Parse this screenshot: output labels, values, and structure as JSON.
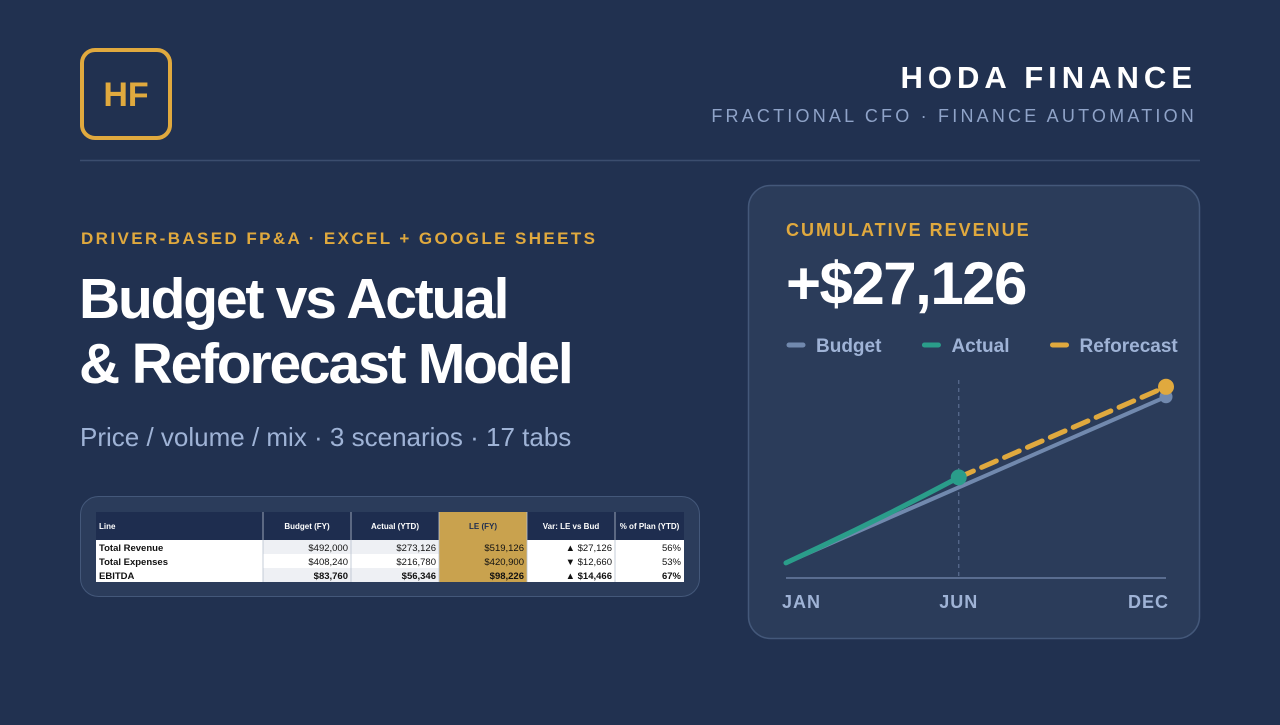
{
  "brand": {
    "logo": "HF",
    "name": "HODA FINANCE",
    "tagline": "FRACTIONAL CFO · FINANCE AUTOMATION"
  },
  "hero": {
    "eyebrow": "DRIVER-BASED FP&A · EXCEL + GOOGLE SHEETS",
    "title_lines": [
      "Budget vs Actual",
      "& Reforecast Model"
    ],
    "subtitle": "Price / volume / mix · 3 scenarios · 17 tabs"
  },
  "table": {
    "columns": [
      "Line",
      "Budget (FY)",
      "Actual (YTD)",
      "LE (FY)",
      "Var: LE vs Bud",
      "% of Plan (YTD)"
    ],
    "rows": [
      [
        "Total Revenue",
        "$492,000",
        "$273,126",
        "$519,126",
        "▲ $27,126",
        "56%"
      ],
      [
        "Total Expenses",
        "$408,240",
        "$216,780",
        "$420,900",
        "▼ $12,660",
        "53%"
      ],
      [
        "EBITDA",
        "$83,760",
        "$56,346",
        "$98,226",
        "▲ $14,466",
        "67%"
      ]
    ]
  },
  "chart_data": {
    "type": "line",
    "title": "CUMULATIVE REVENUE",
    "headline": "+$27,126",
    "categories": [
      "JAN",
      null,
      null,
      null,
      null,
      "JUN",
      null,
      null,
      null,
      null,
      null,
      "DEC"
    ],
    "series": [
      {
        "name": "Budget",
        "color": "#7189ae",
        "dashed": false,
        "values": [
          41000,
          82000,
          123000,
          164000,
          205000,
          246000,
          287000,
          328000,
          369000,
          410000,
          451000,
          492000
        ]
      },
      {
        "name": "Actual",
        "color": "#2a9d8a",
        "dashed": false,
        "values": [
          41000,
          85000,
          130000,
          176000,
          224000,
          273126,
          null,
          null,
          null,
          null,
          null,
          null
        ]
      },
      {
        "name": "Reforecast",
        "color": "#e0a93e",
        "dashed": true,
        "values": [
          null,
          null,
          null,
          null,
          null,
          273126,
          314126,
          355126,
          396126,
          437126,
          478126,
          519126
        ]
      }
    ],
    "ylim": [
      0,
      600000
    ]
  }
}
